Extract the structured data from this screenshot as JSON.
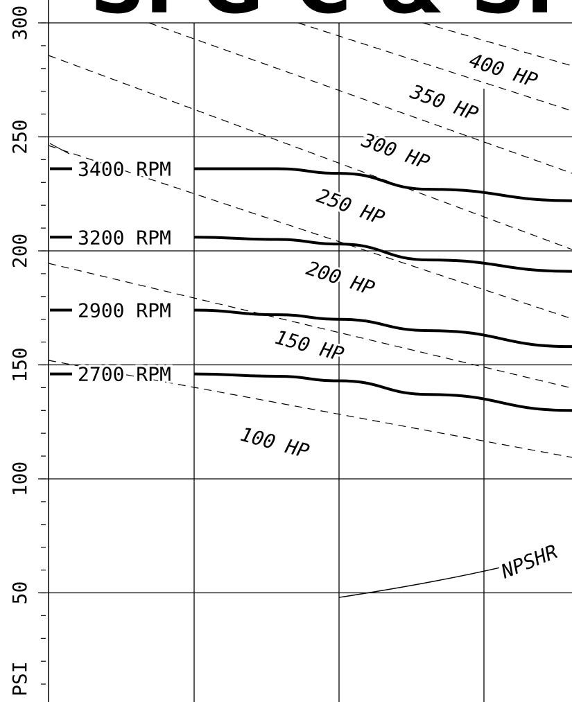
{
  "chart_data": {
    "type": "line",
    "title": "SPG-C & SPG SERIES",
    "ylabel": "PSI",
    "ylim": [
      0,
      300
    ],
    "y_ticks": [
      "300",
      "250",
      "200",
      "150",
      "100",
      "50"
    ],
    "grid": true,
    "rpm_curves": [
      {
        "name": "3400 RPM",
        "values": [
          236,
          236,
          234,
          227,
          222
        ]
      },
      {
        "name": "3200 RPM",
        "values": [
          206,
          205,
          203,
          196,
          191
        ]
      },
      {
        "name": "2900 RPM",
        "values": [
          174,
          172,
          170,
          165,
          158
        ]
      },
      {
        "name": "2700 RPM",
        "values": [
          146,
          145,
          143,
          137,
          130
        ]
      }
    ],
    "hp_lines": [
      {
        "name": "100 HP"
      },
      {
        "name": "150 HP"
      },
      {
        "name": "200 HP"
      },
      {
        "name": "250 HP"
      },
      {
        "name": "300 HP"
      },
      {
        "name": "350 HP"
      },
      {
        "name": "400 HP"
      }
    ],
    "npshr": {
      "name": "NPSHR",
      "values": [
        48,
        61
      ]
    }
  }
}
